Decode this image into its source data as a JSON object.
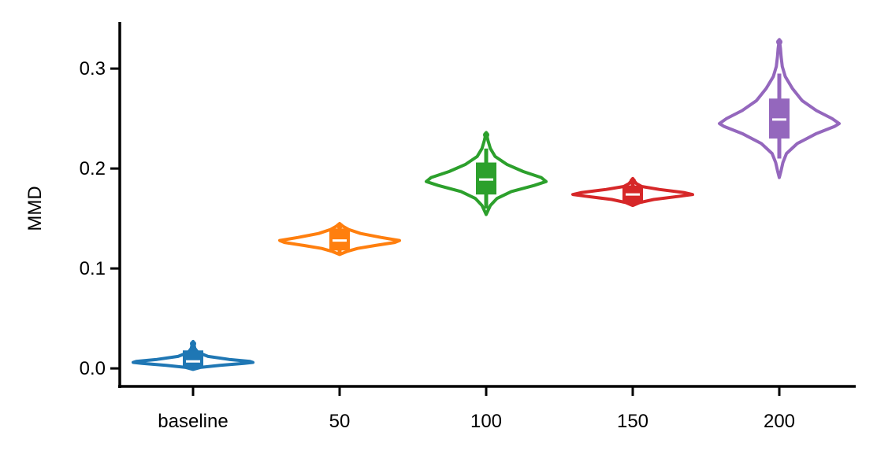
{
  "chart_data": {
    "type": "violin",
    "title": "",
    "xlabel": "",
    "ylabel": "MMD",
    "ylim": [
      -0.018,
      0.345
    ],
    "yticks": [
      0.0,
      0.1,
      0.2,
      0.3
    ],
    "ytick_labels": [
      "0.0",
      "0.1",
      "0.2",
      "0.3"
    ],
    "grid": false,
    "categories": [
      "baseline",
      "50",
      "100",
      "150",
      "200"
    ],
    "series": [
      {
        "category": "baseline",
        "color": "#1f77b4",
        "min": -0.001,
        "max": 0.027,
        "q1": 0.001,
        "median": 0.007,
        "q3": 0.018,
        "whisker_low": 0.0,
        "whisker_high": 0.022,
        "density": [
          [
            -0.001,
            0.0
          ],
          [
            0.001,
            0.12
          ],
          [
            0.003,
            0.45
          ],
          [
            0.005,
            0.85
          ],
          [
            0.006,
            1.0
          ],
          [
            0.007,
            0.95
          ],
          [
            0.009,
            0.6
          ],
          [
            0.012,
            0.25
          ],
          [
            0.016,
            0.08
          ],
          [
            0.02,
            0.03
          ],
          [
            0.024,
            0.015
          ],
          [
            0.027,
            0.0
          ]
        ]
      },
      {
        "category": "50",
        "color": "#ff7f0e",
        "min": 0.114,
        "max": 0.145,
        "q1": 0.118,
        "median": 0.128,
        "q3": 0.14,
        "whisker_low": 0.115,
        "whisker_high": 0.143,
        "density": [
          [
            0.114,
            0.0
          ],
          [
            0.117,
            0.12
          ],
          [
            0.12,
            0.3
          ],
          [
            0.123,
            0.6
          ],
          [
            0.126,
            0.92
          ],
          [
            0.128,
            1.0
          ],
          [
            0.131,
            0.7
          ],
          [
            0.135,
            0.35
          ],
          [
            0.139,
            0.15
          ],
          [
            0.142,
            0.06
          ],
          [
            0.145,
            0.0
          ]
        ]
      },
      {
        "category": "100",
        "color": "#2ca02c",
        "min": 0.154,
        "max": 0.236,
        "q1": 0.174,
        "median": 0.189,
        "q3": 0.206,
        "whisker_low": 0.16,
        "whisker_high": 0.22,
        "density": [
          [
            0.154,
            0.0
          ],
          [
            0.158,
            0.03
          ],
          [
            0.163,
            0.07
          ],
          [
            0.17,
            0.18
          ],
          [
            0.177,
            0.42
          ],
          [
            0.183,
            0.8
          ],
          [
            0.187,
            1.0
          ],
          [
            0.191,
            0.92
          ],
          [
            0.197,
            0.62
          ],
          [
            0.204,
            0.35
          ],
          [
            0.212,
            0.15
          ],
          [
            0.22,
            0.07
          ],
          [
            0.228,
            0.03
          ],
          [
            0.236,
            0.0
          ]
        ]
      },
      {
        "category": "150",
        "color": "#d62728",
        "min": 0.163,
        "max": 0.19,
        "q1": 0.165,
        "median": 0.174,
        "q3": 0.183,
        "whisker_low": 0.164,
        "whisker_high": 0.186,
        "density": [
          [
            0.163,
            0.0
          ],
          [
            0.166,
            0.12
          ],
          [
            0.169,
            0.35
          ],
          [
            0.172,
            0.75
          ],
          [
            0.174,
            1.0
          ],
          [
            0.176,
            0.85
          ],
          [
            0.179,
            0.45
          ],
          [
            0.182,
            0.15
          ],
          [
            0.185,
            0.06
          ],
          [
            0.188,
            0.02
          ],
          [
            0.19,
            0.0
          ]
        ]
      },
      {
        "category": "200",
        "color": "#9467bd",
        "min": 0.191,
        "max": 0.329,
        "q1": 0.23,
        "median": 0.249,
        "q3": 0.27,
        "whisker_low": 0.21,
        "whisker_high": 0.295,
        "density": [
          [
            0.191,
            0.0
          ],
          [
            0.198,
            0.03
          ],
          [
            0.206,
            0.06
          ],
          [
            0.215,
            0.12
          ],
          [
            0.225,
            0.3
          ],
          [
            0.235,
            0.62
          ],
          [
            0.242,
            0.92
          ],
          [
            0.245,
            1.0
          ],
          [
            0.25,
            0.88
          ],
          [
            0.258,
            0.62
          ],
          [
            0.268,
            0.38
          ],
          [
            0.28,
            0.22
          ],
          [
            0.292,
            0.1
          ],
          [
            0.302,
            0.05
          ],
          [
            0.312,
            0.03
          ],
          [
            0.32,
            0.02
          ],
          [
            0.329,
            0.0
          ]
        ]
      }
    ]
  }
}
